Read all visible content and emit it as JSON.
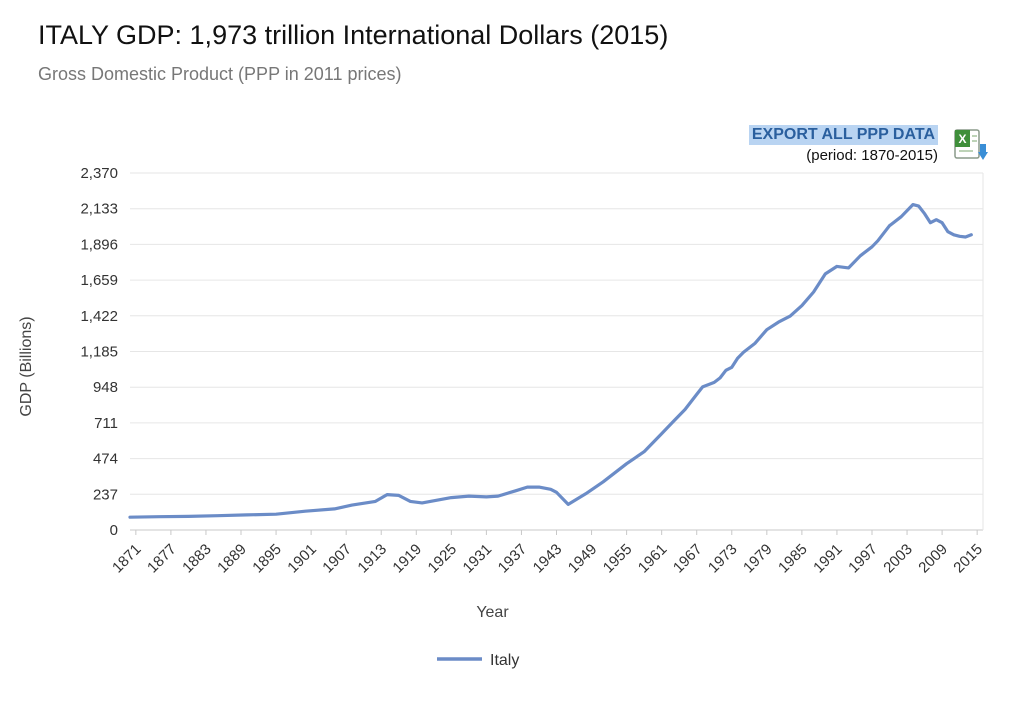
{
  "header": {
    "title": "ITALY GDP: 1,973 trillion International Dollars (2015)",
    "subtitle": "Gross Domestic Product (PPP in 2011 prices)"
  },
  "export": {
    "link_label": "EXPORT ALL PPP DATA",
    "period": "(period: 1870-2015)",
    "icon": "excel-download-icon"
  },
  "chart_data": {
    "type": "line",
    "xlabel": "Year",
    "ylabel": "GDP (Billions)",
    "ylim": [
      0,
      2370
    ],
    "yticks": [
      "0",
      "237",
      "474",
      "711",
      "948",
      "1,185",
      "1,422",
      "1,659",
      "1,896",
      "2,133",
      "2,370"
    ],
    "xlim": [
      1870,
      2016
    ],
    "xticks": [
      "1871",
      "1877",
      "1883",
      "1889",
      "1895",
      "1901",
      "1907",
      "1913",
      "1919",
      "1925",
      "1931",
      "1937",
      "1943",
      "1949",
      "1955",
      "1961",
      "1967",
      "1973",
      "1979",
      "1985",
      "1991",
      "1997",
      "2003",
      "2009",
      "2015"
    ],
    "grid": true,
    "legend": "bottom",
    "line_color": "#6b8cc7",
    "series": [
      {
        "name": "Italy",
        "x": [
          1870,
          1875,
          1880,
          1885,
          1890,
          1895,
          1900,
          1905,
          1908,
          1912,
          1914,
          1916,
          1918,
          1920,
          1925,
          1928,
          1931,
          1933,
          1936,
          1938,
          1940,
          1942,
          1943,
          1945,
          1948,
          1951,
          1955,
          1958,
          1961,
          1963,
          1965,
          1967,
          1968,
          1970,
          1971,
          1972,
          1973,
          1974,
          1975,
          1977,
          1979,
          1981,
          1983,
          1985,
          1987,
          1989,
          1991,
          1993,
          1995,
          1997,
          1998,
          2000,
          2002,
          2004,
          2005,
          2006,
          2007,
          2008,
          2009,
          2010,
          2011,
          2012,
          2013,
          2014
        ],
        "y": [
          85,
          88,
          90,
          95,
          100,
          105,
          125,
          140,
          165,
          190,
          235,
          230,
          190,
          180,
          215,
          225,
          220,
          225,
          260,
          285,
          285,
          270,
          250,
          170,
          240,
          320,
          440,
          520,
          640,
          720,
          800,
          900,
          950,
          980,
          1010,
          1060,
          1080,
          1140,
          1180,
          1240,
          1330,
          1380,
          1420,
          1490,
          1580,
          1700,
          1750,
          1740,
          1820,
          1880,
          1920,
          2020,
          2080,
          2160,
          2150,
          2100,
          2040,
          2060,
          2040,
          1980,
          1960,
          1950,
          1945,
          1960
        ]
      }
    ]
  }
}
